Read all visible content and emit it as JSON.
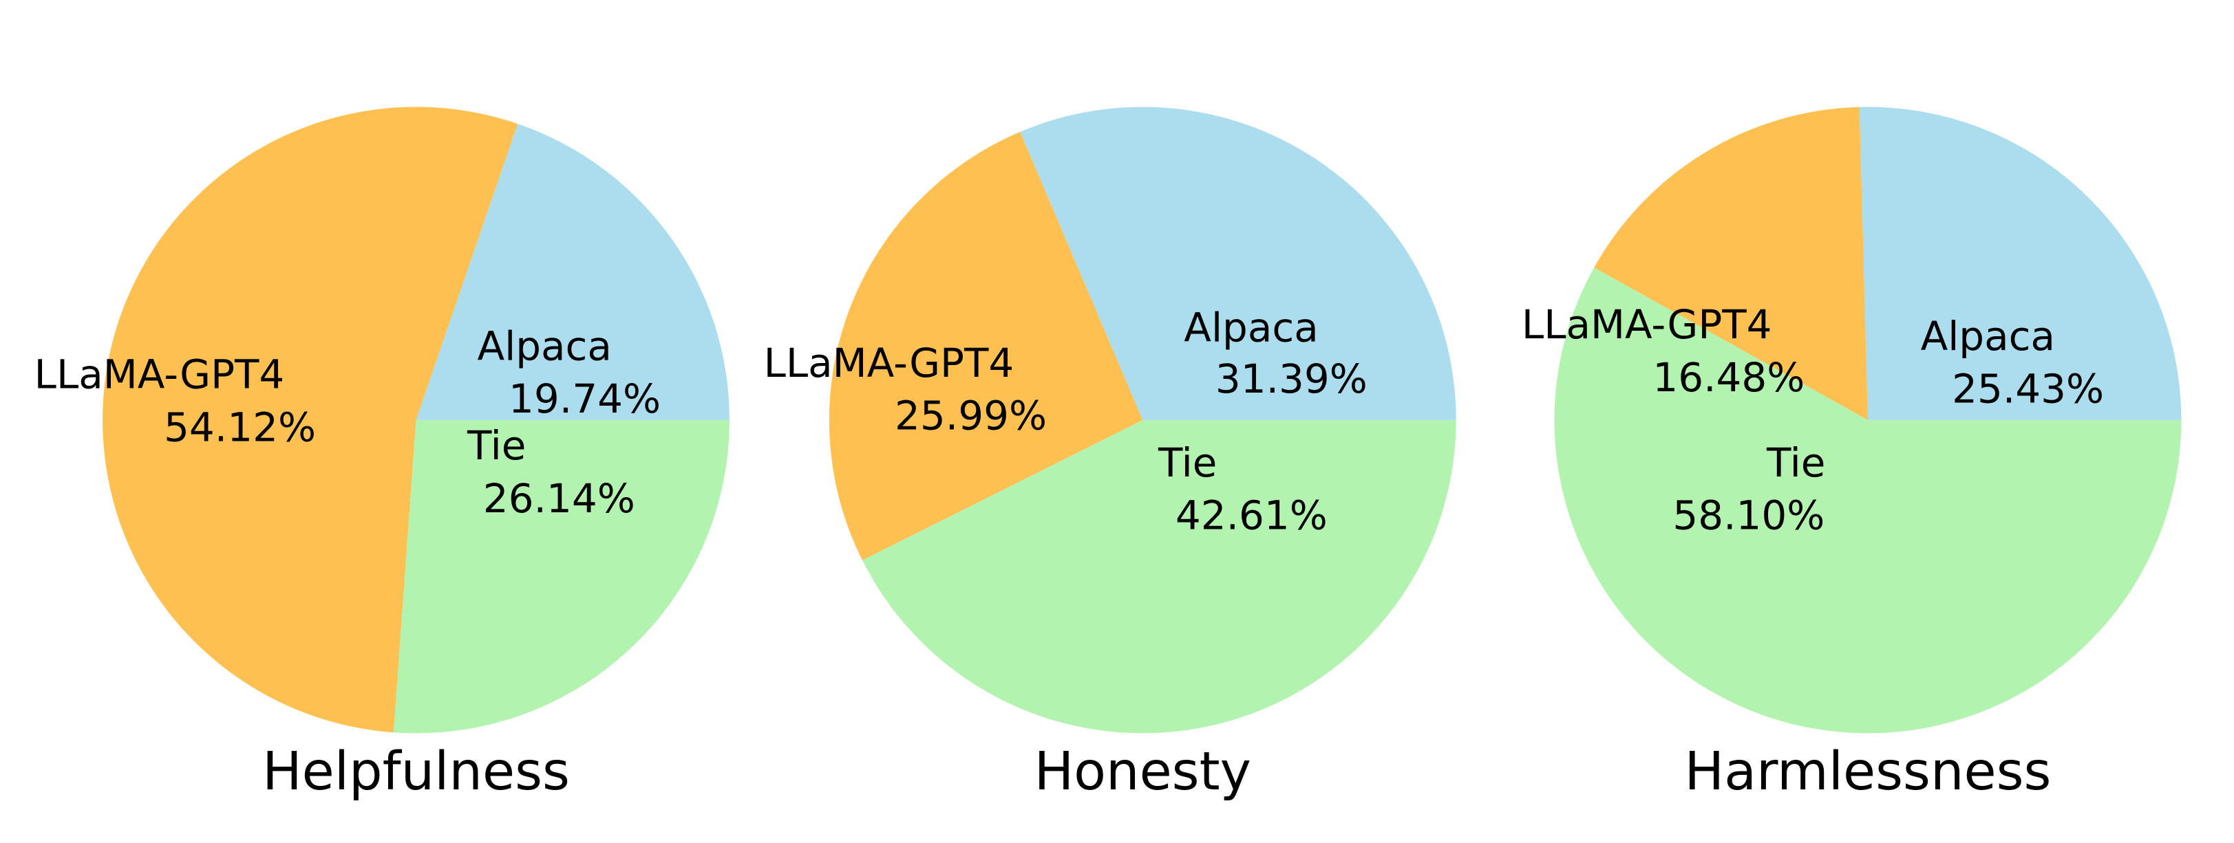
{
  "chart_data": [
    {
      "type": "pie",
      "title": "Helpfulness",
      "start_angle_deg": 0,
      "direction": "counterclockwise",
      "slices": [
        {
          "label": "Alpaca",
          "value": 19.74,
          "pct_label": "19.74%",
          "color": "#abddef"
        },
        {
          "label": "LLaMA-GPT4",
          "value": 54.12,
          "pct_label": "54.12%",
          "color": "#fec050"
        },
        {
          "label": "Tie",
          "value": 26.14,
          "pct_label": "26.14%",
          "color": "#b3f3b0"
        }
      ]
    },
    {
      "type": "pie",
      "title": "Honesty",
      "start_angle_deg": 0,
      "direction": "counterclockwise",
      "slices": [
        {
          "label": "Alpaca",
          "value": 31.39,
          "pct_label": "31.39%",
          "color": "#abddef"
        },
        {
          "label": "LLaMA-GPT4",
          "value": 25.99,
          "pct_label": "25.99%",
          "color": "#fec050"
        },
        {
          "label": "Tie",
          "value": 42.61,
          "pct_label": "42.61%",
          "color": "#b3f3b0"
        }
      ]
    },
    {
      "type": "pie",
      "title": "Harmlessness",
      "start_angle_deg": 0,
      "direction": "counterclockwise",
      "slices": [
        {
          "label": "Alpaca",
          "value": 25.43,
          "pct_label": "25.43%",
          "color": "#abddef"
        },
        {
          "label": "LLaMA-GPT4",
          "value": 16.48,
          "pct_label": "16.48%",
          "color": "#fec050"
        },
        {
          "label": "Tie",
          "value": 58.1,
          "pct_label": "58.10%",
          "color": "#b3f3b0"
        }
      ]
    }
  ]
}
